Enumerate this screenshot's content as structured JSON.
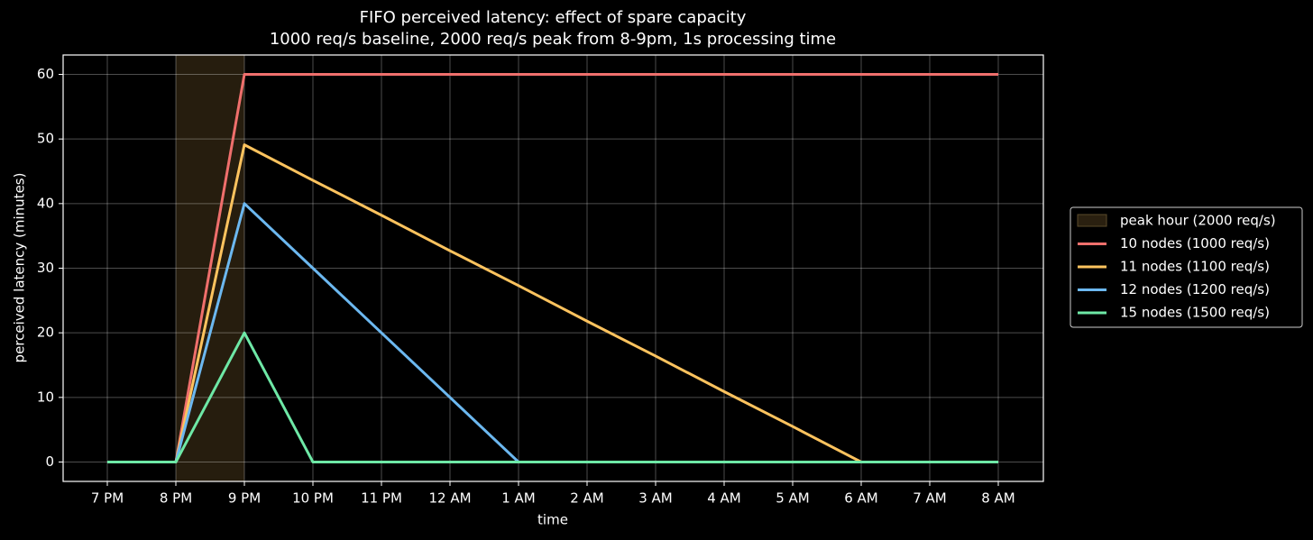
{
  "chart_data": {
    "type": "line",
    "title": "FIFO perceived latency: effect of spare capacity",
    "subtitle": "1000 req/s baseline, 2000 req/s peak from 8-9pm, 1s processing time",
    "x_label": "time",
    "y_label": "perceived latency (minutes)",
    "categories": [
      "7 PM",
      "8 PM",
      "9 PM",
      "10 PM",
      "11 PM",
      "12 AM",
      "1 AM",
      "2 AM",
      "3 AM",
      "4 AM",
      "5 AM",
      "6 AM",
      "7 AM",
      "8 AM"
    ],
    "span": {
      "name": "peak hour (2000 req/s)",
      "color": "#2a2010",
      "from": "8 PM",
      "to": "9 PM"
    },
    "series": [
      {
        "name": "10 nodes (1000 req/s)",
        "color": "#ef6f6c",
        "values": [
          0,
          0,
          60,
          60,
          60,
          60,
          60,
          60,
          60,
          60,
          60,
          60,
          60,
          60
        ]
      },
      {
        "name": "11 nodes (1100 req/s)",
        "color": "#fdc35e",
        "values": [
          0,
          0,
          49.1,
          43.6,
          38.2,
          32.7,
          27.3,
          21.8,
          16.4,
          10.9,
          5.5,
          0,
          0,
          0
        ]
      },
      {
        "name": "12 nodes (1200 req/s)",
        "color": "#6cb8f0",
        "values": [
          0,
          0,
          40,
          30,
          20,
          10,
          0,
          0,
          0,
          0,
          0,
          0,
          0,
          0
        ]
      },
      {
        "name": "15 nodes (1500 req/s)",
        "color": "#6ee8a6",
        "values": [
          0,
          0,
          20,
          0,
          0,
          0,
          0,
          0,
          0,
          0,
          0,
          0,
          0,
          0
        ]
      }
    ],
    "ylim": [
      -3,
      63
    ],
    "yticks": [
      0,
      10,
      20,
      30,
      40,
      50,
      60
    ],
    "grid": true,
    "legend": "right"
  }
}
